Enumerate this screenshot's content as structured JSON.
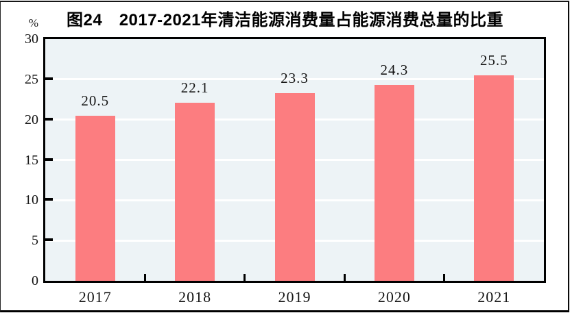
{
  "figure": {
    "title": "图24　2017-2021年清洁能源消费量占能源消费总量的比重",
    "unit_label": "%"
  },
  "chart_data": {
    "type": "bar",
    "title": "图24　2017-2021年清洁能源消费量占能源消费总量的比重",
    "categories": [
      "2017",
      "2018",
      "2019",
      "2020",
      "2021"
    ],
    "values": [
      20.5,
      22.1,
      23.3,
      24.3,
      25.5
    ],
    "data_labels": [
      "20.5",
      "22.1",
      "23.3",
      "24.3",
      "25.5"
    ],
    "xlabel": "",
    "ylabel": "%",
    "ylim": [
      0,
      30
    ],
    "yticks": [
      0,
      5,
      10,
      15,
      20,
      25,
      30
    ],
    "grid": true,
    "legend_position": "none",
    "colors": {
      "bar": "#fc7d80",
      "plot_background": "#edf3f6",
      "gridline": "#ffffff",
      "axis_border": "#000000",
      "text": "#141414"
    }
  }
}
